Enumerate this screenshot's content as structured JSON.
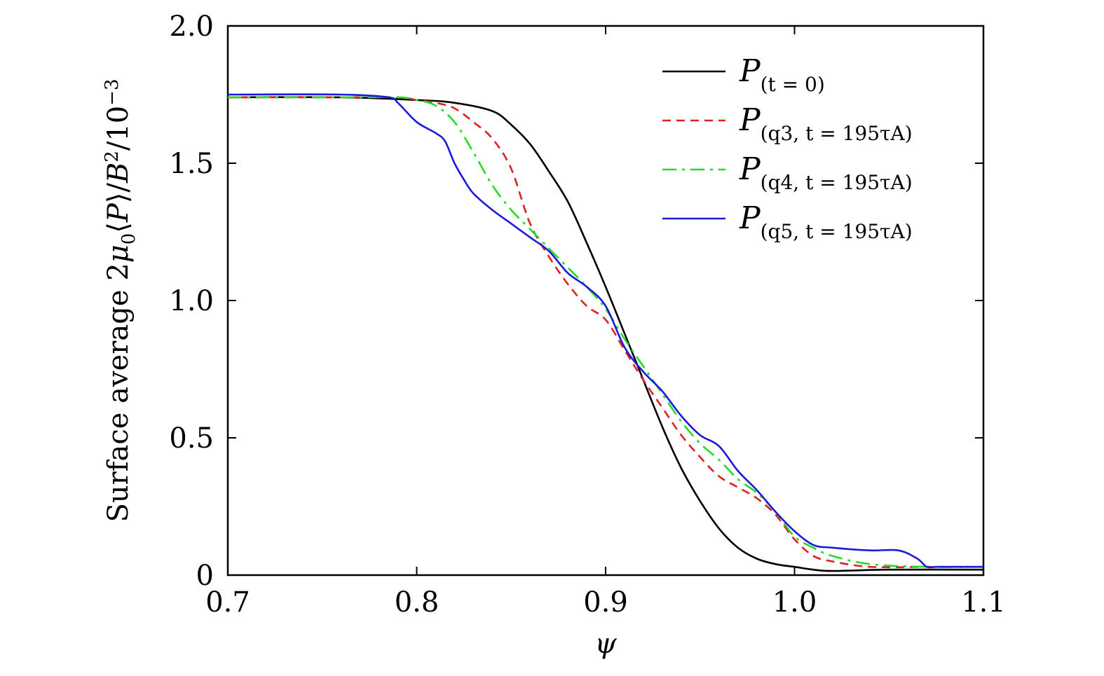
{
  "chart_data": {
    "type": "line",
    "xlabel": "ψ",
    "ylabel": "Surface average 2μ₀⟨P⟩/B²/10⁻³",
    "xlim": [
      0.7,
      1.1
    ],
    "ylim": [
      0,
      2.0
    ],
    "xticks": [
      "0.7",
      "0.8",
      "0.9",
      "1.0",
      "1.1"
    ],
    "yticks": [
      "0",
      "0.5",
      "1.0",
      "1.5",
      "2.0"
    ],
    "legend_position": "top-right",
    "series": [
      {
        "name": "P(t = 0)",
        "color": "#000000",
        "dash": "solid",
        "x": [
          0.7,
          0.76,
          0.8,
          0.82,
          0.84,
          0.85,
          0.86,
          0.87,
          0.88,
          0.89,
          0.9,
          0.91,
          0.92,
          0.93,
          0.94,
          0.95,
          0.96,
          0.97,
          0.98,
          0.99,
          1.0,
          1.01,
          1.02,
          1.05,
          1.1
        ],
        "y": [
          1.74,
          1.74,
          1.73,
          1.72,
          1.69,
          1.64,
          1.57,
          1.47,
          1.36,
          1.21,
          1.05,
          0.88,
          0.71,
          0.54,
          0.39,
          0.27,
          0.17,
          0.1,
          0.06,
          0.04,
          0.03,
          0.02,
          0.015,
          0.02,
          0.02
        ]
      },
      {
        "name": "P(q3, t = 195τA)",
        "color": "#e02020",
        "dash": "dashed",
        "x": [
          0.7,
          0.76,
          0.79,
          0.8,
          0.81,
          0.82,
          0.83,
          0.84,
          0.85,
          0.86,
          0.87,
          0.88,
          0.89,
          0.9,
          0.91,
          0.92,
          0.93,
          0.94,
          0.95,
          0.96,
          0.97,
          0.98,
          0.99,
          1.0,
          1.01,
          1.02,
          1.04,
          1.07,
          1.1
        ],
        "y": [
          1.74,
          1.74,
          1.74,
          1.73,
          1.72,
          1.7,
          1.65,
          1.59,
          1.48,
          1.28,
          1.16,
          1.06,
          0.98,
          0.93,
          0.82,
          0.71,
          0.61,
          0.51,
          0.43,
          0.36,
          0.32,
          0.28,
          0.22,
          0.13,
          0.07,
          0.05,
          0.03,
          0.03,
          0.03
        ]
      },
      {
        "name": "P(q4, t = 195τA)",
        "color": "#22dd22",
        "dash": "dashdot",
        "x": [
          0.7,
          0.76,
          0.79,
          0.8,
          0.81,
          0.82,
          0.83,
          0.84,
          0.85,
          0.86,
          0.87,
          0.88,
          0.89,
          0.9,
          0.91,
          0.92,
          0.93,
          0.94,
          0.95,
          0.96,
          0.97,
          0.98,
          0.99,
          1.0,
          1.01,
          1.02,
          1.04,
          1.07,
          1.1
        ],
        "y": [
          1.74,
          1.74,
          1.74,
          1.73,
          1.71,
          1.65,
          1.54,
          1.42,
          1.33,
          1.26,
          1.19,
          1.12,
          1.05,
          0.97,
          0.86,
          0.76,
          0.66,
          0.56,
          0.48,
          0.42,
          0.35,
          0.3,
          0.23,
          0.14,
          0.1,
          0.07,
          0.04,
          0.03,
          0.03
        ]
      },
      {
        "name": "P(q5, t = 195τA)",
        "color": "#1a1adb",
        "dash": "solid",
        "x": [
          0.7,
          0.76,
          0.785,
          0.79,
          0.8,
          0.81,
          0.815,
          0.82,
          0.825,
          0.83,
          0.84,
          0.85,
          0.86,
          0.87,
          0.88,
          0.89,
          0.9,
          0.91,
          0.92,
          0.93,
          0.94,
          0.95,
          0.96,
          0.97,
          0.98,
          0.99,
          1.0,
          1.01,
          1.02,
          1.04,
          1.055,
          1.065,
          1.07,
          1.075,
          1.08,
          1.1
        ],
        "y": [
          1.75,
          1.75,
          1.74,
          1.72,
          1.65,
          1.61,
          1.58,
          1.5,
          1.44,
          1.39,
          1.33,
          1.28,
          1.23,
          1.18,
          1.1,
          1.05,
          0.98,
          0.83,
          0.74,
          0.67,
          0.58,
          0.51,
          0.47,
          0.38,
          0.31,
          0.23,
          0.16,
          0.11,
          0.1,
          0.09,
          0.09,
          0.06,
          0.03,
          0.03,
          0.03,
          0.03
        ]
      }
    ]
  }
}
